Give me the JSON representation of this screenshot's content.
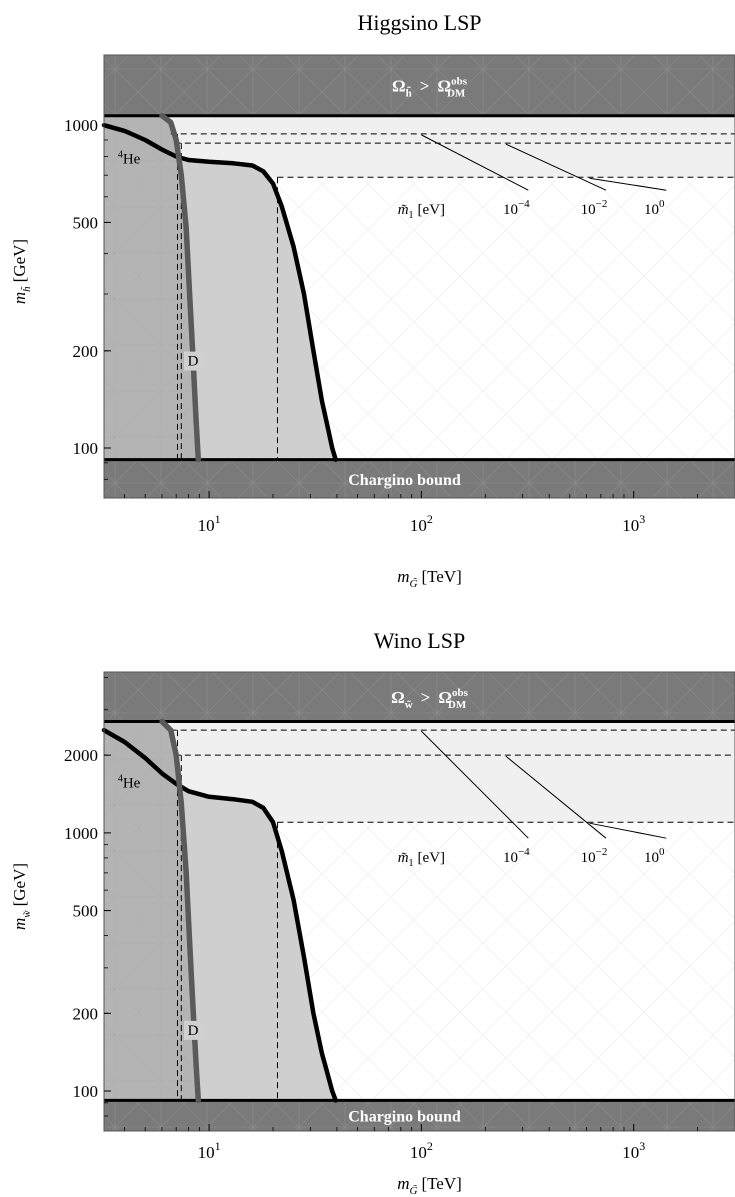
{
  "chart_data": [
    {
      "type": "line",
      "title": "Higgsino LSP",
      "xlabel": "m",
      "xlabel_sub": "G̃",
      "xlabel_unit": "[TeV]",
      "ylabel": "m",
      "ylabel_sub": "h̃",
      "ylabel_unit": "[GeV]",
      "x_scale": "log",
      "y_scale": "log",
      "xlim": [
        3.2,
        3000
      ],
      "ylim": [
        70,
        1650
      ],
      "x_ticks": [
        10,
        100,
        1000
      ],
      "x_tick_labels": [
        {
          "base": "10",
          "exp": "1"
        },
        {
          "base": "10",
          "exp": "2"
        },
        {
          "base": "10",
          "exp": "3"
        }
      ],
      "y_ticks": [
        100,
        200,
        500,
        1000
      ],
      "y_tick_labels": [
        "100",
        "200",
        "500",
        "1000"
      ],
      "excluded_top": {
        "y_min": 1070,
        "label": "Ω",
        "label_sub": "h̃",
        "label_rel": ">",
        "label_rhs": "Ω",
        "label_rhs_sub": "DM",
        "label_rhs_sup": "obs"
      },
      "excluded_bottom": {
        "y_max": 92,
        "label": "Chargino bound"
      },
      "series": [
        {
          "name": "⁴He",
          "label_base": "He",
          "label_sup": "4",
          "label_at": [
            4.2,
            760
          ],
          "color": "#000000",
          "x": [
            3.2,
            4,
            5,
            6,
            7,
            8,
            10,
            13,
            16,
            18,
            20,
            22,
            25,
            28,
            31,
            34,
            36,
            38,
            39.5
          ],
          "y": [
            1000,
            960,
            900,
            840,
            800,
            780,
            770,
            762,
            750,
            720,
            660,
            560,
            420,
            300,
            200,
            140,
            118,
            100,
            92
          ]
        },
        {
          "name": "D",
          "label_at": [
            8.4,
            180
          ],
          "color": "#5a5a5a",
          "x": [
            6,
            6.6,
            7,
            7.4,
            7.8,
            8.1,
            8.4,
            8.7,
            8.9
          ],
          "y": [
            1070,
            1020,
            900,
            700,
            480,
            300,
            190,
            120,
            92
          ]
        }
      ],
      "m1_contours": {
        "legend_label": "m̃",
        "legend_sub": "1",
        "legend_unit": "[eV]",
        "entries": [
          {
            "label_base": "10",
            "label_exp": "−4",
            "y": 940,
            "x_min": 6.6,
            "x_max": 3000,
            "d_cut_x": 7.1
          },
          {
            "label_base": "10",
            "label_exp": "−2",
            "y": 880,
            "x_min": 6.9,
            "x_max": 3000,
            "d_cut_x": 7.4
          },
          {
            "label_base": "10",
            "label_exp": "0",
            "y": 690,
            "x_min": 21,
            "x_max": 3000,
            "d_cut_x": 21
          }
        ],
        "label_y": 530,
        "label_x": [
          280,
          650,
          1250
        ],
        "legend_x": 100
      }
    },
    {
      "type": "line",
      "title": "Wino LSP",
      "xlabel": "m",
      "xlabel_sub": "G̃",
      "xlabel_unit": "[TeV]",
      "ylabel": "m",
      "ylabel_sub": "w̃",
      "ylabel_unit": "[GeV]",
      "x_scale": "log",
      "y_scale": "log",
      "xlim": [
        3.2,
        3000
      ],
      "ylim": [
        70,
        4200
      ],
      "x_ticks": [
        10,
        100,
        1000
      ],
      "x_tick_labels": [
        {
          "base": "10",
          "exp": "1"
        },
        {
          "base": "10",
          "exp": "2"
        },
        {
          "base": "10",
          "exp": "3"
        }
      ],
      "y_ticks": [
        100,
        200,
        500,
        1000,
        2000
      ],
      "y_tick_labels": [
        "100",
        "200",
        "500",
        "1000",
        "2000"
      ],
      "excluded_top": {
        "y_min": 2700,
        "label": "Ω",
        "label_sub": "w̃",
        "label_rel": ">",
        "label_rhs": "Ω",
        "label_rhs_sub": "DM",
        "label_rhs_sup": "obs"
      },
      "excluded_bottom": {
        "y_max": 92,
        "label": "Chargino bound"
      },
      "series": [
        {
          "name": "⁴He",
          "label_base": "He",
          "label_sup": "4",
          "label_at": [
            4.2,
            1500
          ],
          "color": "#000000",
          "x": [
            3.2,
            4,
            5,
            6,
            7,
            8,
            10,
            13,
            16,
            18,
            20,
            22,
            25,
            28,
            31,
            34,
            36,
            38,
            39.5
          ],
          "y": [
            2500,
            2250,
            1950,
            1700,
            1550,
            1450,
            1380,
            1350,
            1320,
            1250,
            1100,
            850,
            550,
            330,
            200,
            140,
            118,
            100,
            92
          ]
        },
        {
          "name": "D",
          "label_at": [
            8.4,
            165
          ],
          "color": "#5a5a5a",
          "x": [
            6,
            6.6,
            7,
            7.4,
            7.8,
            8.1,
            8.4,
            8.7,
            8.9
          ],
          "y": [
            2700,
            2500,
            2000,
            1300,
            700,
            380,
            210,
            125,
            92
          ]
        }
      ],
      "m1_contours": {
        "legend_label": "m̃",
        "legend_sub": "1",
        "legend_unit": "[eV]",
        "entries": [
          {
            "label_base": "10",
            "label_exp": "−4",
            "y": 2500,
            "x_min": 6.6,
            "x_max": 3000,
            "d_cut_x": 7.1
          },
          {
            "label_base": "10",
            "label_exp": "−2",
            "y": 2000,
            "x_min": 6.9,
            "x_max": 3000,
            "d_cut_x": 7.4
          },
          {
            "label_base": "10",
            "label_exp": "0",
            "y": 1100,
            "x_min": 21,
            "x_max": 3000,
            "d_cut_x": 21
          }
        ],
        "label_y": 770,
        "label_x": [
          280,
          650,
          1250
        ],
        "legend_x": 100
      }
    }
  ]
}
